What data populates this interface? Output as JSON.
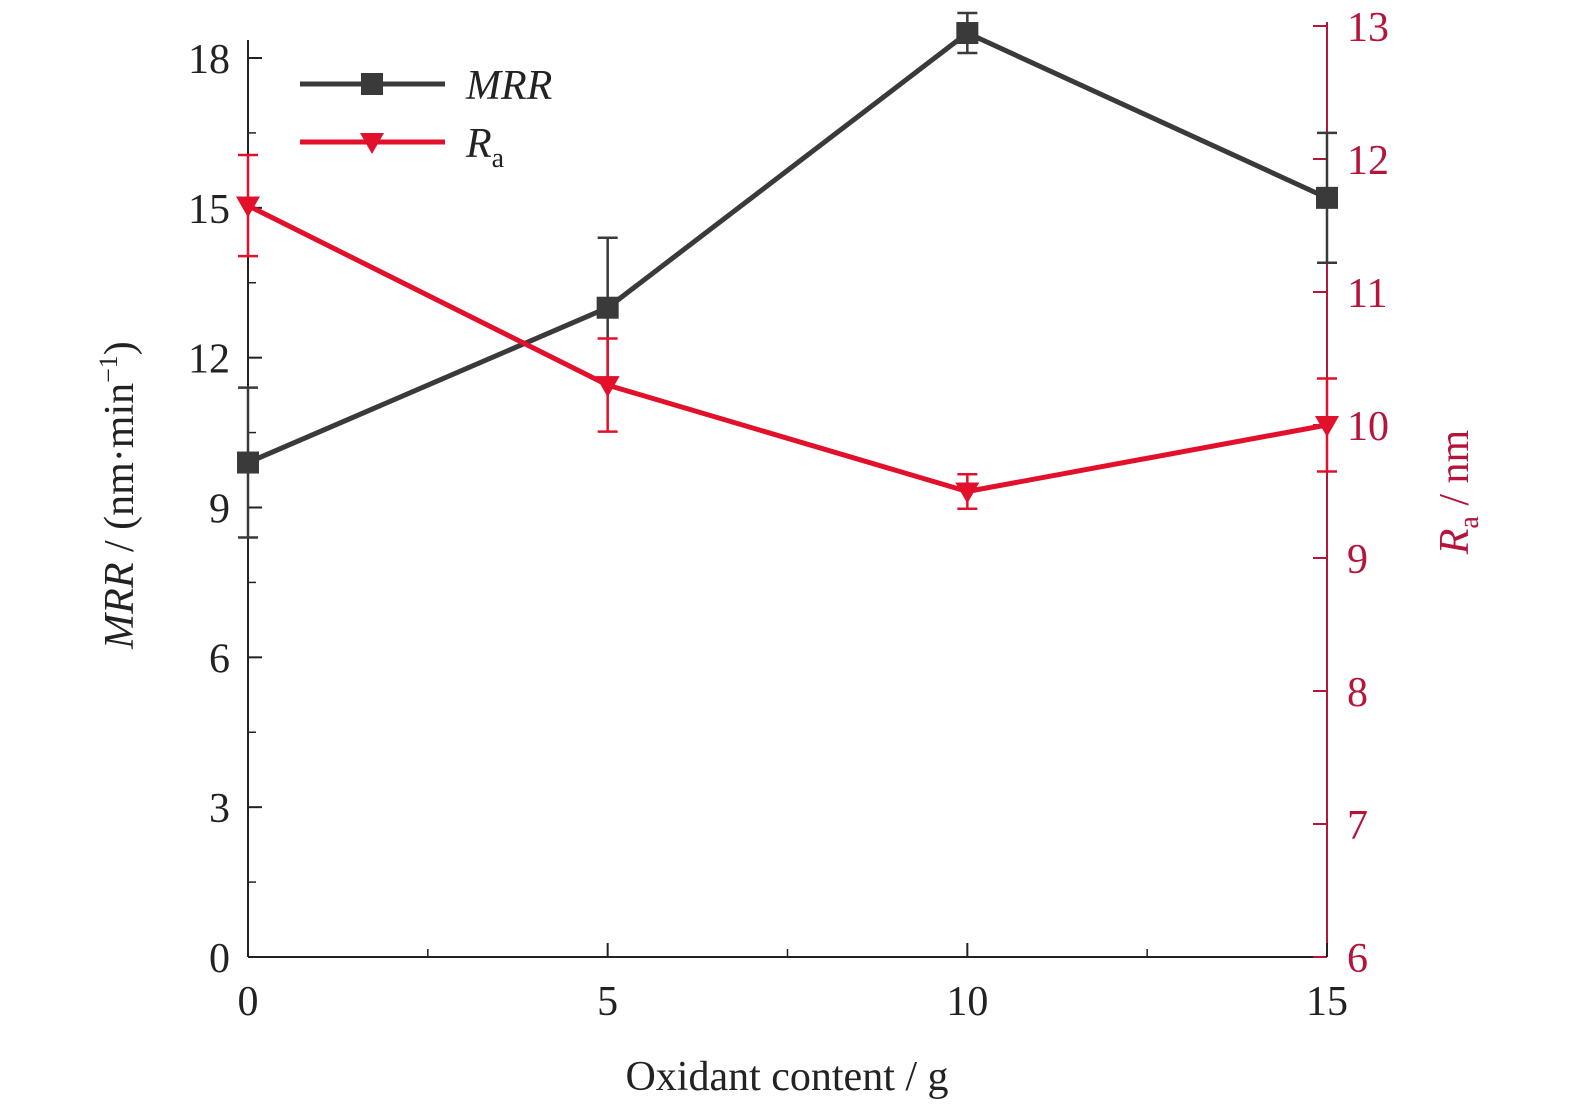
{
  "chart_data": {
    "type": "line",
    "title": "",
    "xlabel": "Oxidant content / g",
    "ylabel_left": {
      "italic": "MRR",
      "rest": " / (nm·min",
      "sup": "−1",
      "close": ")"
    },
    "ylabel_right": {
      "italic": "R",
      "sub": "a",
      "rest": " / nm"
    },
    "x": [
      0,
      5,
      10,
      15
    ],
    "x_ticks": [
      0,
      5,
      10,
      15
    ],
    "xlim": [
      0,
      15
    ],
    "ylim_left": [
      0,
      18
    ],
    "y_ticks_left": [
      0,
      3,
      6,
      9,
      12,
      15,
      18
    ],
    "ylim_right": [
      6,
      13
    ],
    "y_ticks_right": [
      6,
      7,
      8,
      9,
      10,
      11,
      12,
      13
    ],
    "grid": false,
    "legend_position": "top-left",
    "series": [
      {
        "name": "MRR",
        "name_italic": "MRR",
        "name_sub": "",
        "axis": "left",
        "marker": "square",
        "color": "#3a3a3a",
        "values": [
          9.9,
          13.0,
          18.5,
          15.2
        ],
        "errors": [
          1.5,
          1.4,
          0.4,
          1.3
        ]
      },
      {
        "name": "Ra",
        "name_italic": "R",
        "name_sub": "a",
        "axis": "right",
        "marker": "triangle-down",
        "color": "#e3102b",
        "values": [
          11.65,
          10.3,
          9.5,
          10.0
        ],
        "errors": [
          0.38,
          0.35,
          0.13,
          0.35
        ]
      }
    ],
    "colors": {
      "axis_left": "#222222",
      "axis_right": "#b5143b"
    }
  }
}
